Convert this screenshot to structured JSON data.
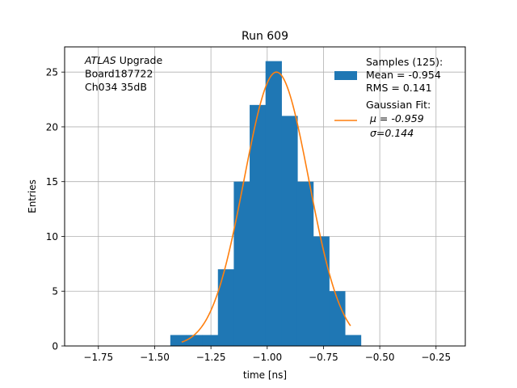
{
  "chart_data": {
    "type": "bar",
    "title": "Run 609",
    "xlabel": "time [ns]",
    "ylabel": "Entries",
    "xlim": [
      -1.9,
      -0.12
    ],
    "ylim": [
      0,
      27.3
    ],
    "grid": true,
    "x_ticks": [
      -1.75,
      -1.5,
      -1.25,
      -1.0,
      -0.75,
      -0.5,
      -0.25
    ],
    "x_tick_labels": [
      "−1.75",
      "−1.50",
      "−1.25",
      "−1.00",
      "−0.75",
      "−0.50",
      "−0.25"
    ],
    "y_ticks": [
      0,
      5,
      10,
      15,
      20,
      25
    ],
    "y_tick_labels": [
      "0",
      "5",
      "10",
      "15",
      "20",
      "25"
    ],
    "histogram": {
      "bin_width": 0.0705,
      "bin_edges": [
        -1.4305,
        -1.36,
        -1.2895,
        -1.219,
        -1.1485,
        -1.078,
        -1.0075,
        -0.937,
        -0.8665,
        -0.796,
        -0.7255,
        -0.655,
        -0.5845
      ],
      "counts": [
        1,
        1,
        1,
        7,
        15,
        22,
        26,
        21,
        15,
        10,
        5,
        1
      ],
      "color": "#1f77b4"
    },
    "fit": {
      "type": "gaussian",
      "amplitude": 25,
      "mu": -0.959,
      "sigma": 0.144,
      "x_range": [
        -1.38,
        -0.63
      ],
      "color": "#ff7f0e"
    },
    "annotation_lines": [
      {
        "italic": "ATLAS",
        "rest": " Upgrade"
      },
      {
        "italic": "",
        "rest": " Board187722"
      },
      {
        "italic": "",
        "rest": " Ch034 35dB"
      }
    ],
    "legend": {
      "placement": "top-right",
      "entries": [
        {
          "kind": "patch",
          "lines": [
            "Samples (125):",
            " Mean = -0.954",
            " RMS = 0.141"
          ]
        },
        {
          "kind": "line",
          "lines": [
            "Gaussian Fit:",
            "μ = -0.959",
            "σ=0.144"
          ]
        }
      ]
    }
  }
}
